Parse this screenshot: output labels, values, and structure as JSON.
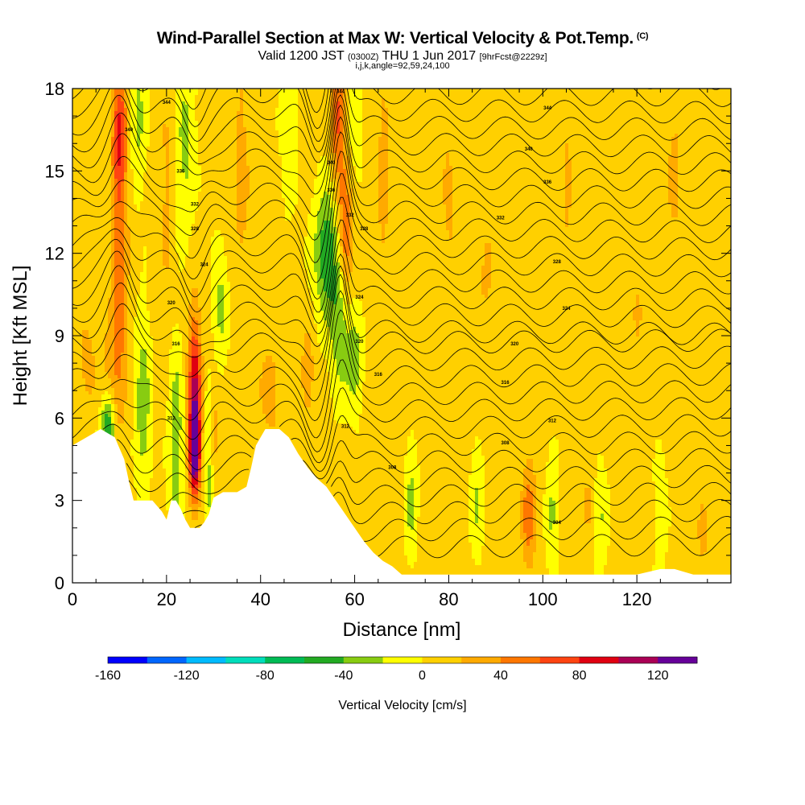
{
  "title": "Wind-Parallel Section at Max W: Vertical Velocity & Pot.Temp.",
  "copyright_mark": "(C)",
  "subtitle": {
    "valid": "Valid 1200 JST",
    "utc": "(0300Z)",
    "date": "THU 1 Jun 2017",
    "fcst": "[9hrFcst@2229z]"
  },
  "params_line": "i,j,k,angle=92,59,24,100",
  "chart_data": {
    "type": "heatmap",
    "xlabel": "Distance [nm]",
    "ylabel": "Height [Kft MSL]",
    "xlim": [
      0,
      140
    ],
    "ylim": [
      0,
      18
    ],
    "x_ticks": [
      0,
      20,
      40,
      60,
      80,
      100,
      120
    ],
    "y_ticks": [
      0,
      3,
      6,
      9,
      12,
      15,
      18
    ],
    "grid": false,
    "terrain": [
      [
        0,
        5.0
      ],
      [
        3,
        5.3
      ],
      [
        6,
        5.6
      ],
      [
        9,
        5.3
      ],
      [
        11,
        4.5
      ],
      [
        12,
        3.7
      ],
      [
        13,
        3.0
      ],
      [
        17,
        3.0
      ],
      [
        19,
        2.6
      ],
      [
        20,
        2.3
      ],
      [
        21,
        3.0
      ],
      [
        22,
        3.0
      ],
      [
        23,
        2.7
      ],
      [
        24,
        2.3
      ],
      [
        25,
        2.0
      ],
      [
        26,
        2.0
      ],
      [
        27,
        2.0
      ],
      [
        28,
        2.2
      ],
      [
        29,
        2.5
      ],
      [
        30,
        3.1
      ],
      [
        32,
        3.3
      ],
      [
        35,
        3.3
      ],
      [
        37,
        3.5
      ],
      [
        38,
        4.2
      ],
      [
        39,
        5.0
      ],
      [
        41,
        5.6
      ],
      [
        44,
        5.6
      ],
      [
        46,
        5.3
      ],
      [
        48,
        4.7
      ],
      [
        50,
        4.2
      ],
      [
        52,
        3.8
      ],
      [
        54,
        3.5
      ],
      [
        56,
        3.0
      ],
      [
        58,
        2.5
      ],
      [
        60,
        2.0
      ],
      [
        62,
        1.5
      ],
      [
        64,
        1.1
      ],
      [
        66,
        0.8
      ],
      [
        68,
        0.6
      ],
      [
        70,
        0.3
      ],
      [
        75,
        0.3
      ],
      [
        100,
        0.3
      ],
      [
        120,
        0.3
      ],
      [
        125,
        0.5
      ],
      [
        128,
        0.5
      ],
      [
        132,
        0.3
      ],
      [
        140,
        0.3
      ]
    ],
    "wv_features": [
      {
        "x": 10,
        "y": 12.0,
        "w": 1.8,
        "h": 5.5,
        "v": 50
      },
      {
        "x": 10,
        "y": 16.5,
        "w": 1.5,
        "h": 2.0,
        "v": 60
      },
      {
        "x": 26,
        "y": 6.8,
        "w": 1.4,
        "h": 3.0,
        "v": 100
      },
      {
        "x": 26,
        "y": 4.8,
        "w": 1.1,
        "h": 1.4,
        "v": 120
      },
      {
        "x": 56.5,
        "y": 17.0,
        "w": 1.5,
        "h": 2.5,
        "v": 60
      },
      {
        "x": 58,
        "y": 12.5,
        "w": 1.5,
        "h": 2.5,
        "v": 60
      },
      {
        "x": 50,
        "y": 7.7,
        "w": 1.2,
        "h": 1.5,
        "v": 40
      },
      {
        "x": 97,
        "y": 2.5,
        "w": 1.5,
        "h": 2.0,
        "v": 50
      },
      {
        "x": 30,
        "y": 5.5,
        "w": 1.3,
        "h": 2.0,
        "v": 30
      },
      {
        "x": 8,
        "y": 7.5,
        "w": 2.5,
        "h": 2.0,
        "v": 25
      },
      {
        "x": 54,
        "y": 12.0,
        "w": 2.5,
        "h": 2.2,
        "v": -60
      },
      {
        "x": 57,
        "y": 9.5,
        "w": 2.0,
        "h": 2.5,
        "v": -45
      },
      {
        "x": 60,
        "y": 8.0,
        "w": 1.5,
        "h": 1.5,
        "v": -40
      },
      {
        "x": 7.5,
        "y": 5.5,
        "w": 1.5,
        "h": 1.5,
        "v": -75
      },
      {
        "x": 15,
        "y": 6.5,
        "w": 1.5,
        "h": 3.0,
        "v": -40
      },
      {
        "x": 22,
        "y": 5.0,
        "w": 1.5,
        "h": 3.5,
        "v": -40
      },
      {
        "x": 29,
        "y": 4.5,
        "w": 1.2,
        "h": 2.5,
        "v": -40
      },
      {
        "x": 14,
        "y": 17.0,
        "w": 1.5,
        "h": 2.5,
        "v": -30
      },
      {
        "x": 24,
        "y": 16.0,
        "w": 2.0,
        "h": 3.0,
        "v": -30
      },
      {
        "x": 31.5,
        "y": 10.0,
        "w": 1.5,
        "h": 2.0,
        "v": -30
      },
      {
        "x": 46,
        "y": 16.5,
        "w": 1.5,
        "h": 2.5,
        "v": -25
      },
      {
        "x": 60,
        "y": 17.5,
        "w": 1.5,
        "h": 2.0,
        "v": -25
      },
      {
        "x": 72,
        "y": 3.0,
        "w": 1.2,
        "h": 2.0,
        "v": -30
      },
      {
        "x": 86,
        "y": 3.0,
        "w": 1.2,
        "h": 2.0,
        "v": -25
      },
      {
        "x": 102,
        "y": 2.5,
        "w": 1.2,
        "h": 1.8,
        "v": -30
      },
      {
        "x": 112,
        "y": 2.5,
        "w": 1.5,
        "h": 2.0,
        "v": -30
      },
      {
        "x": 125,
        "y": 2.5,
        "w": 1.2,
        "h": 1.8,
        "v": -25
      },
      {
        "x": 36,
        "y": 15.0,
        "w": 2.0,
        "h": 6.0,
        "v": 22
      },
      {
        "x": 20,
        "y": 14.0,
        "w": 1.5,
        "h": 5.0,
        "v": 20
      },
      {
        "x": 66,
        "y": 15.0,
        "w": 2.0,
        "h": 6.0,
        "v": 20
      },
      {
        "x": 80,
        "y": 14.0,
        "w": 2.0,
        "h": 5.0,
        "v": 18
      },
      {
        "x": 88,
        "y": 11.0,
        "w": 2.5,
        "h": 3.0,
        "v": 18
      },
      {
        "x": 105,
        "y": 14.5,
        "w": 2.0,
        "h": 5.0,
        "v": 18
      },
      {
        "x": 120,
        "y": 10.0,
        "w": 2.5,
        "h": 4.0,
        "v": 15
      },
      {
        "x": 128,
        "y": 15.0,
        "w": 2.0,
        "h": 4.0,
        "v": 20
      },
      {
        "x": 42,
        "y": 7.0,
        "w": 2.5,
        "h": 2.0,
        "v": 25
      },
      {
        "x": 110,
        "y": 3.0,
        "w": 2.0,
        "h": 2.0,
        "v": 20
      },
      {
        "x": 134,
        "y": 2.0,
        "w": 1.5,
        "h": 1.5,
        "v": 25
      },
      {
        "x": 3,
        "y": 8.0,
        "w": 2.0,
        "h": 2.0,
        "v": 22
      }
    ],
    "colorbar": {
      "label": "Vertical Velocity [cm/s]",
      "min": -160,
      "max": 140,
      "step": 20,
      "ticks": [
        -160,
        -120,
        -80,
        -40,
        0,
        40,
        80,
        120
      ],
      "colors": [
        "#0000ff",
        "#0066ff",
        "#00bbff",
        "#00ddbb",
        "#00bb55",
        "#22aa22",
        "#88cc11",
        "#ffff00",
        "#ffd000",
        "#ffaa00",
        "#ff7700",
        "#ff4411",
        "#e00011",
        "#aa0055",
        "#660099"
      ]
    },
    "isentrope_labels": [
      {
        "x": 20,
        "y": 17.5,
        "text": "344"
      },
      {
        "x": 12,
        "y": 16.5,
        "text": "340"
      },
      {
        "x": 23,
        "y": 15.0,
        "text": "336"
      },
      {
        "x": 26,
        "y": 13.8,
        "text": "332"
      },
      {
        "x": 26,
        "y": 12.9,
        "text": "328"
      },
      {
        "x": 28,
        "y": 11.6,
        "text": "324"
      },
      {
        "x": 21,
        "y": 10.2,
        "text": "320"
      },
      {
        "x": 22,
        "y": 8.7,
        "text": "316"
      },
      {
        "x": 21,
        "y": 6.0,
        "text": "312"
      },
      {
        "x": 57,
        "y": 17.9,
        "text": "344"
      },
      {
        "x": 55,
        "y": 15.3,
        "text": "340"
      },
      {
        "x": 55,
        "y": 14.3,
        "text": "336"
      },
      {
        "x": 59,
        "y": 13.4,
        "text": "332"
      },
      {
        "x": 62,
        "y": 12.9,
        "text": "328"
      },
      {
        "x": 61,
        "y": 10.4,
        "text": "324"
      },
      {
        "x": 61,
        "y": 8.8,
        "text": "320"
      },
      {
        "x": 65,
        "y": 7.6,
        "text": "316"
      },
      {
        "x": 58,
        "y": 5.7,
        "text": "312"
      },
      {
        "x": 68,
        "y": 4.2,
        "text": "308"
      },
      {
        "x": 101,
        "y": 17.3,
        "text": "344"
      },
      {
        "x": 97,
        "y": 15.8,
        "text": "340"
      },
      {
        "x": 101,
        "y": 14.6,
        "text": "336"
      },
      {
        "x": 91,
        "y": 13.3,
        "text": "332"
      },
      {
        "x": 103,
        "y": 11.7,
        "text": "328"
      },
      {
        "x": 105,
        "y": 10.0,
        "text": "324"
      },
      {
        "x": 94,
        "y": 8.7,
        "text": "320"
      },
      {
        "x": 92,
        "y": 7.3,
        "text": "316"
      },
      {
        "x": 102,
        "y": 5.9,
        "text": "312"
      },
      {
        "x": 92,
        "y": 5.1,
        "text": "308"
      },
      {
        "x": 103,
        "y": 2.2,
        "text": "304"
      }
    ]
  }
}
